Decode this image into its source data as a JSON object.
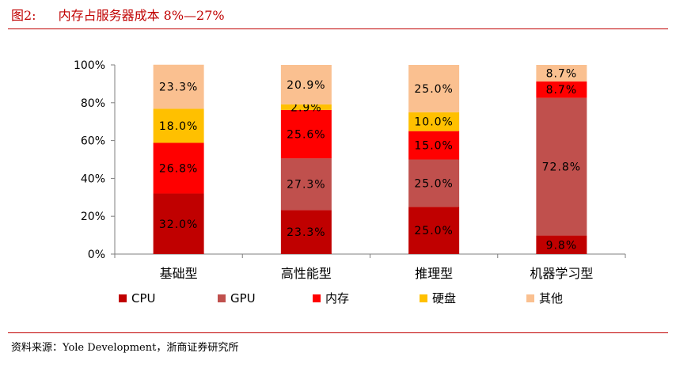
{
  "figure": {
    "number": "图2:",
    "title": "内存占服务器成本 8%—27%",
    "source": "资料来源：Yole Development，浙商证券研究所"
  },
  "colors": {
    "accent": "#c00000",
    "CPU": "#c00000",
    "GPU": "#c0504d",
    "内存": "#ff0000",
    "硬盘": "#ffc000",
    "其他": "#fac090"
  },
  "chart_data": {
    "type": "bar",
    "stacked": true,
    "categories": [
      "基础型",
      "高性能型",
      "推理型",
      "机器学习型"
    ],
    "ylim": [
      0,
      100
    ],
    "yticks": [
      "0%",
      "20%",
      "40%",
      "60%",
      "80%",
      "100%"
    ],
    "legend_position": "bottom",
    "grid": false,
    "series": [
      {
        "name": "CPU",
        "values": [
          32.0,
          23.3,
          25.0,
          9.8
        ],
        "labels": [
          "32.0%",
          "23.3%",
          "25.0%",
          "9.8%"
        ]
      },
      {
        "name": "GPU",
        "values": [
          0,
          27.3,
          25.0,
          72.8
        ],
        "labels": [
          "",
          "27.3%",
          "25.0%",
          "72.8%"
        ]
      },
      {
        "name": "内存",
        "values": [
          26.8,
          25.6,
          15.0,
          8.7
        ],
        "labels": [
          "26.8%",
          "25.6%",
          "15.0%",
          "8.7%"
        ]
      },
      {
        "name": "硬盘",
        "values": [
          18.0,
          2.9,
          10.0,
          0
        ],
        "labels": [
          "18.0%",
          "2.9%",
          "10.0%",
          ""
        ]
      },
      {
        "name": "其他",
        "values": [
          23.3,
          20.9,
          25.0,
          8.7
        ],
        "labels": [
          "23.3%",
          "20.9%",
          "25.0%",
          "8.7%"
        ]
      }
    ]
  }
}
